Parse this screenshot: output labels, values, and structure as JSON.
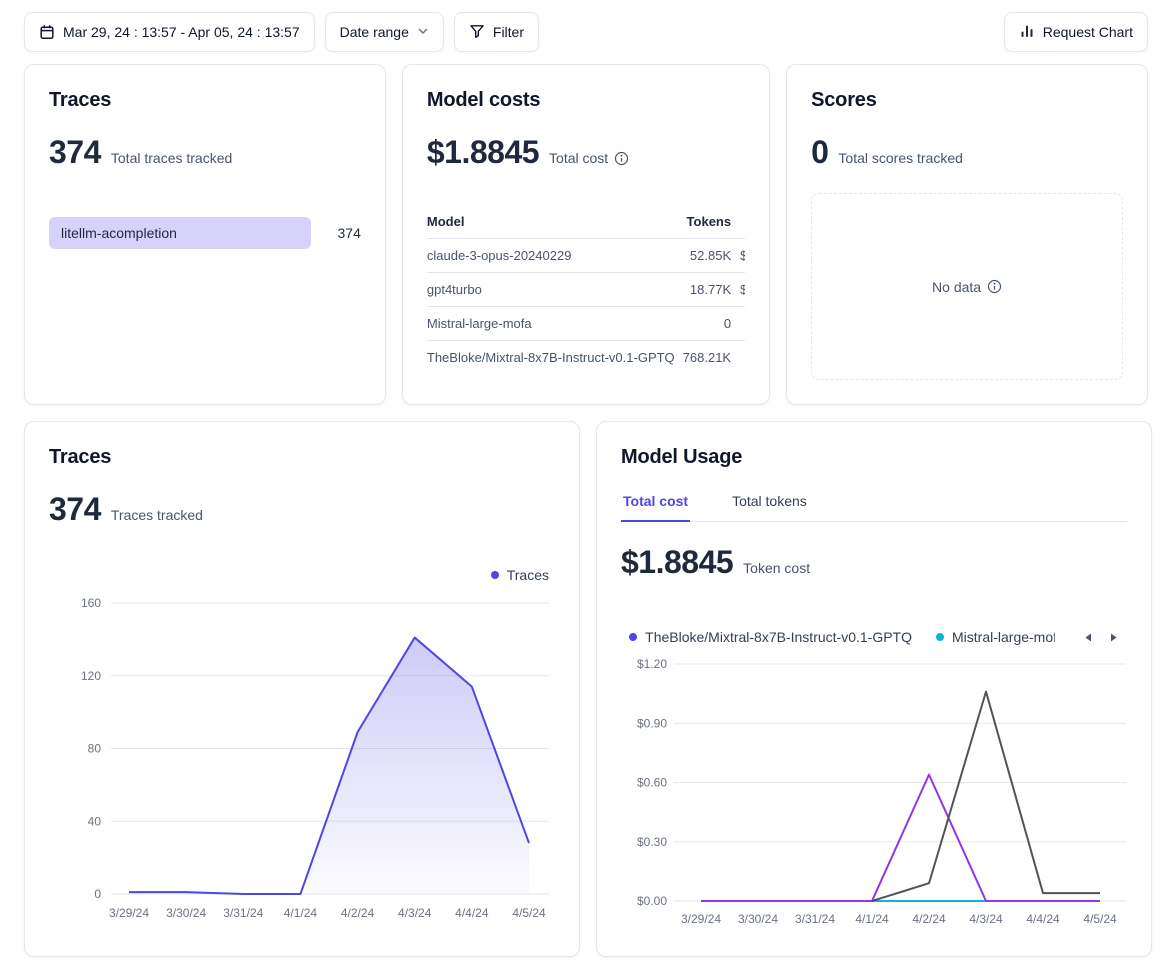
{
  "topbar": {
    "date_range_value": "Mar 29, 24 : 13:57 - Apr 05, 24 : 13:57",
    "date_range_label": "Date range",
    "filter_label": "Filter",
    "request_chart_label": "Request Chart"
  },
  "colors": {
    "accent": "#4f46e5",
    "trace_bar_fill": "#d7d2fa"
  },
  "traces_card": {
    "title": "Traces",
    "total": "374",
    "subtitle": "Total traces tracked",
    "items": [
      {
        "label": "litellm-acompletion",
        "value": "374"
      }
    ]
  },
  "model_costs_card": {
    "title": "Model costs",
    "total": "$1.8845",
    "subtitle": "Total cost",
    "table": {
      "columns": [
        "Model",
        "Tokens"
      ],
      "rows": [
        {
          "model": "claude-3-opus-20240229",
          "tokens": "52.85K",
          "usd": "$"
        },
        {
          "model": "gpt4turbo",
          "tokens": "18.77K",
          "usd": "$"
        },
        {
          "model": "Mistral-large-mofa",
          "tokens": "0",
          "usd": ""
        },
        {
          "model": "TheBloke/Mixtral-8x7B-Instruct-v0.1-GPTQ",
          "tokens": "768.21K",
          "usd": ""
        }
      ]
    }
  },
  "scores_card": {
    "title": "Scores",
    "total": "0",
    "subtitle": "Total scores tracked",
    "empty_text": "No data"
  },
  "traces_chart_card": {
    "title": "Traces",
    "total": "374",
    "subtitle": "Traces tracked",
    "legend": [
      {
        "label": "Traces",
        "color": "#4f46e5"
      }
    ]
  },
  "model_usage_card": {
    "title": "Model Usage",
    "tabs": [
      {
        "label": "Total cost",
        "active": true
      },
      {
        "label": "Total tokens",
        "active": false
      }
    ],
    "total": "$1.8845",
    "subtitle": "Token cost",
    "legend": [
      {
        "label": "TheBloke/Mixtral-8x7B-Instruct-v0.1-GPTQ",
        "color": "#4f46e5"
      },
      {
        "label": "Mistral-large-mofa",
        "color": "#06b6d4"
      }
    ]
  },
  "chart_data": [
    {
      "type": "area",
      "title": "Traces",
      "x": [
        "3/29/24",
        "3/30/24",
        "3/31/24",
        "4/1/24",
        "4/2/24",
        "4/3/24",
        "4/4/24",
        "4/5/24"
      ],
      "series": [
        {
          "name": "Traces",
          "color": "#4f46e5",
          "area": true,
          "values": [
            1,
            1,
            0,
            0,
            89,
            141,
            114,
            28
          ]
        }
      ],
      "ylim": [
        0,
        160
      ],
      "ytick_values": [
        0,
        40,
        80,
        120,
        160
      ],
      "ytick_labels": [
        "0",
        "40",
        "80",
        "120",
        "160"
      ],
      "grid": "horizontal",
      "legend_position": "top-right"
    },
    {
      "type": "line",
      "title": "Model Usage - Total cost",
      "x": [
        "3/29/24",
        "3/30/24",
        "3/31/24",
        "4/1/24",
        "4/2/24",
        "4/3/24",
        "4/4/24",
        "4/5/24"
      ],
      "series": [
        {
          "name": "TheBloke/Mixtral-8x7B-Instruct-v0.1-GPTQ",
          "color": "#4f46e5",
          "values": [
            0,
            0,
            0,
            0,
            0,
            0,
            0,
            0
          ]
        },
        {
          "name": "Mistral-large-mofa",
          "color": "#06b6d4",
          "values": [
            0,
            0,
            0,
            0,
            0,
            0,
            0,
            0
          ]
        },
        {
          "name": "gpt4turbo",
          "color": "#9333ea",
          "values": [
            0,
            0,
            0,
            0,
            0.64,
            0,
            0,
            0
          ]
        },
        {
          "name": "claude-3-opus-20240229",
          "color": "#52525b",
          "values": [
            null,
            null,
            null,
            0,
            0.09,
            1.06,
            0.04,
            0.04
          ]
        }
      ],
      "ylim": [
        0,
        1.2
      ],
      "ytick_values": [
        0,
        0.3,
        0.6,
        0.9,
        1.2
      ],
      "ytick_labels": [
        "$0.00",
        "$0.30",
        "$0.60",
        "$0.90",
        "$1.20"
      ],
      "grid": "horizontal",
      "legend_position": "top-right"
    }
  ]
}
